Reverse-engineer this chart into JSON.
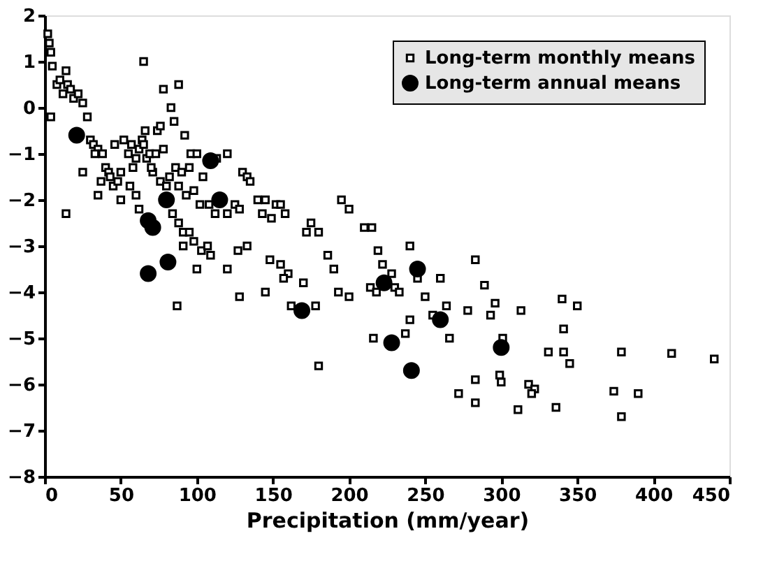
{
  "chart_data": {
    "type": "scatter",
    "xlabel": "Precipitation (mm/year)",
    "xlim": [
      0,
      450
    ],
    "xticks": [
      0,
      50,
      100,
      150,
      200,
      250,
      300,
      350,
      400,
      450
    ],
    "ylim": [
      -8,
      2
    ],
    "yticks": [
      -8,
      -7,
      -6,
      -5,
      -4,
      -3,
      -2,
      -1,
      0,
      1,
      2
    ],
    "grid": false,
    "legend": "top right",
    "series": [
      {
        "name": "Long-term monthly means",
        "color": "#000000",
        "marker": "square",
        "x": [
          2,
          3,
          4,
          5,
          4,
          8,
          10,
          12,
          14,
          15,
          17,
          19,
          22,
          25,
          14,
          28,
          30,
          32,
          35,
          33,
          38,
          25,
          40,
          42,
          37,
          35,
          43,
          45,
          48,
          50,
          46,
          52,
          55,
          57,
          58,
          60,
          62,
          64,
          65,
          67,
          66,
          69,
          71,
          73,
          74,
          76,
          78,
          70,
          56,
          60,
          62,
          50,
          65,
          78,
          83,
          88,
          85,
          92,
          96,
          100,
          104,
          95,
          98,
          102,
          82,
          86,
          88,
          90,
          93,
          76,
          80,
          84,
          88,
          91,
          95,
          98,
          103,
          107,
          109,
          100,
          87,
          91,
          113,
          120,
          108,
          112,
          120,
          125,
          128,
          130,
          133,
          135,
          140,
          143,
          145,
          149,
          152,
          155,
          158,
          127,
          133,
          120,
          128,
          145,
          148,
          155,
          160,
          162,
          157,
          170,
          175,
          172,
          180,
          186,
          178,
          190,
          193,
          200,
          180,
          195,
          200,
          210,
          215,
          219,
          222,
          214,
          216,
          218,
          228,
          230,
          233,
          240,
          245,
          237,
          240,
          250,
          255,
          260,
          264,
          266,
          283,
          289,
          296,
          293,
          278,
          313,
          340,
          350,
          341,
          331,
          341,
          345,
          379,
          412,
          440,
          283,
          272,
          283,
          299,
          300,
          318,
          322,
          320,
          311,
          336,
          374,
          390,
          379,
          301
        ],
        "values": [
          1.6,
          1.4,
          1.2,
          0.9,
          -0.2,
          0.5,
          0.6,
          0.3,
          0.8,
          0.5,
          0.4,
          0.2,
          0.3,
          0.1,
          -2.3,
          -0.2,
          -0.7,
          -0.8,
          -0.9,
          -1.0,
          -1.0,
          -1.4,
          -1.3,
          -1.4,
          -1.6,
          -1.9,
          -1.5,
          -1.7,
          -1.6,
          -1.4,
          -0.8,
          -0.7,
          -1.0,
          -0.8,
          -1.3,
          -1.1,
          -0.9,
          -0.7,
          -0.8,
          -1.1,
          -0.5,
          -1.0,
          -1.4,
          -1.0,
          -0.5,
          -0.4,
          -0.9,
          -1.3,
          -1.7,
          -1.9,
          -2.2,
          -2.0,
          1.0,
          0.4,
          0.0,
          0.5,
          -0.3,
          -0.6,
          -1.0,
          -1.0,
          -1.5,
          -1.3,
          -1.8,
          -2.1,
          -1.5,
          -1.3,
          -1.7,
          -1.4,
          -1.9,
          -1.6,
          -1.7,
          -2.3,
          -2.5,
          -2.7,
          -2.7,
          -2.9,
          -3.1,
          -3.0,
          -3.2,
          -3.5,
          -4.3,
          -3.0,
          -1.1,
          -1.0,
          -2.1,
          -2.3,
          -2.3,
          -2.1,
          -2.2,
          -1.4,
          -1.5,
          -1.6,
          -2.0,
          -2.3,
          -2.0,
          -2.4,
          -2.1,
          -2.1,
          -2.3,
          -3.1,
          -3.0,
          -3.5,
          -4.1,
          -4.0,
          -3.3,
          -3.4,
          -3.6,
          -4.3,
          -3.7,
          -3.8,
          -2.5,
          -2.7,
          -2.7,
          -3.2,
          -4.3,
          -3.5,
          -4.0,
          -4.1,
          -5.6,
          -2.0,
          -2.2,
          -2.6,
          -2.6,
          -3.1,
          -3.4,
          -3.9,
          -5.0,
          -4.0,
          -3.6,
          -3.9,
          -4.0,
          -3.0,
          -3.7,
          -4.9,
          -4.6,
          -4.1,
          -4.5,
          -3.7,
          -4.3,
          -5.0,
          -3.3,
          -3.85,
          -4.24,
          -4.5,
          -4.4,
          -4.4,
          -4.15,
          -4.3,
          -4.8,
          -5.3,
          -5.3,
          -5.55,
          -5.3,
          -5.33,
          -5.45,
          -5.9,
          -6.2,
          -6.4,
          -5.8,
          -5.95,
          -6.0,
          -6.1,
          -6.2,
          -6.55,
          -6.5,
          -6.15,
          -6.2,
          -6.7,
          -5.0
        ]
      },
      {
        "name": "Long-term annual means",
        "color": "#000000",
        "marker": "circle",
        "x": [
          21,
          109,
          115,
          80,
          68,
          71,
          68,
          81,
          169,
          223,
          245,
          260,
          228,
          241,
          300
        ],
        "values": [
          -0.6,
          -1.15,
          -2.0,
          -2.0,
          -2.45,
          -2.6,
          -3.6,
          -3.35,
          -4.4,
          -3.8,
          -3.5,
          -4.6,
          -5.1,
          -5.7,
          -5.2
        ]
      }
    ]
  }
}
